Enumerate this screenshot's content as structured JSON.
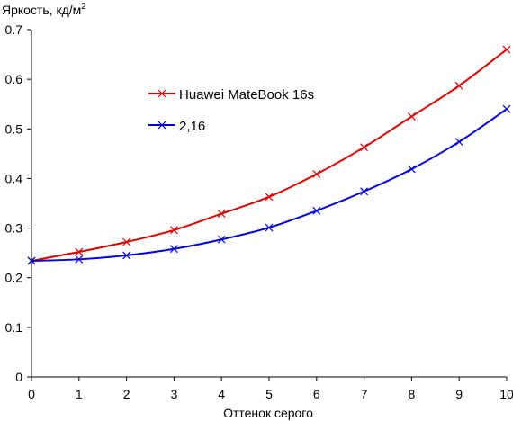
{
  "chart_data": {
    "type": "line",
    "ylabel": "Яркость, кд/м",
    "ylabel_sup": "2",
    "xlabel": "Оттенок серого",
    "x": [
      0,
      1,
      2,
      3,
      4,
      5,
      6,
      7,
      8,
      9,
      10
    ],
    "xlim": [
      0,
      10
    ],
    "ylim": [
      0,
      0.7
    ],
    "x_ticks": [
      "0",
      "1",
      "2",
      "3",
      "4",
      "5",
      "6",
      "7",
      "8",
      "9",
      "10"
    ],
    "y_ticks": [
      "0",
      "0.1",
      "0.2",
      "0.3",
      "0.4",
      "0.5",
      "0.6",
      "0.7"
    ],
    "y_tick_values": [
      0,
      0.1,
      0.2,
      0.3,
      0.4,
      0.5,
      0.6,
      0.7
    ],
    "grid": false,
    "legend_position": "upper-left inside",
    "series": [
      {
        "name": "Huawei MateBook 16s",
        "color": "#e00000",
        "marker": "x",
        "values": [
          0.234,
          0.252,
          0.272,
          0.296,
          0.329,
          0.363,
          0.409,
          0.463,
          0.525,
          0.587,
          0.66
        ]
      },
      {
        "name": "2,16",
        "color": "#0000e0",
        "marker": "x",
        "values": [
          0.234,
          0.237,
          0.245,
          0.258,
          0.277,
          0.301,
          0.335,
          0.374,
          0.419,
          0.474,
          0.54
        ]
      }
    ]
  }
}
